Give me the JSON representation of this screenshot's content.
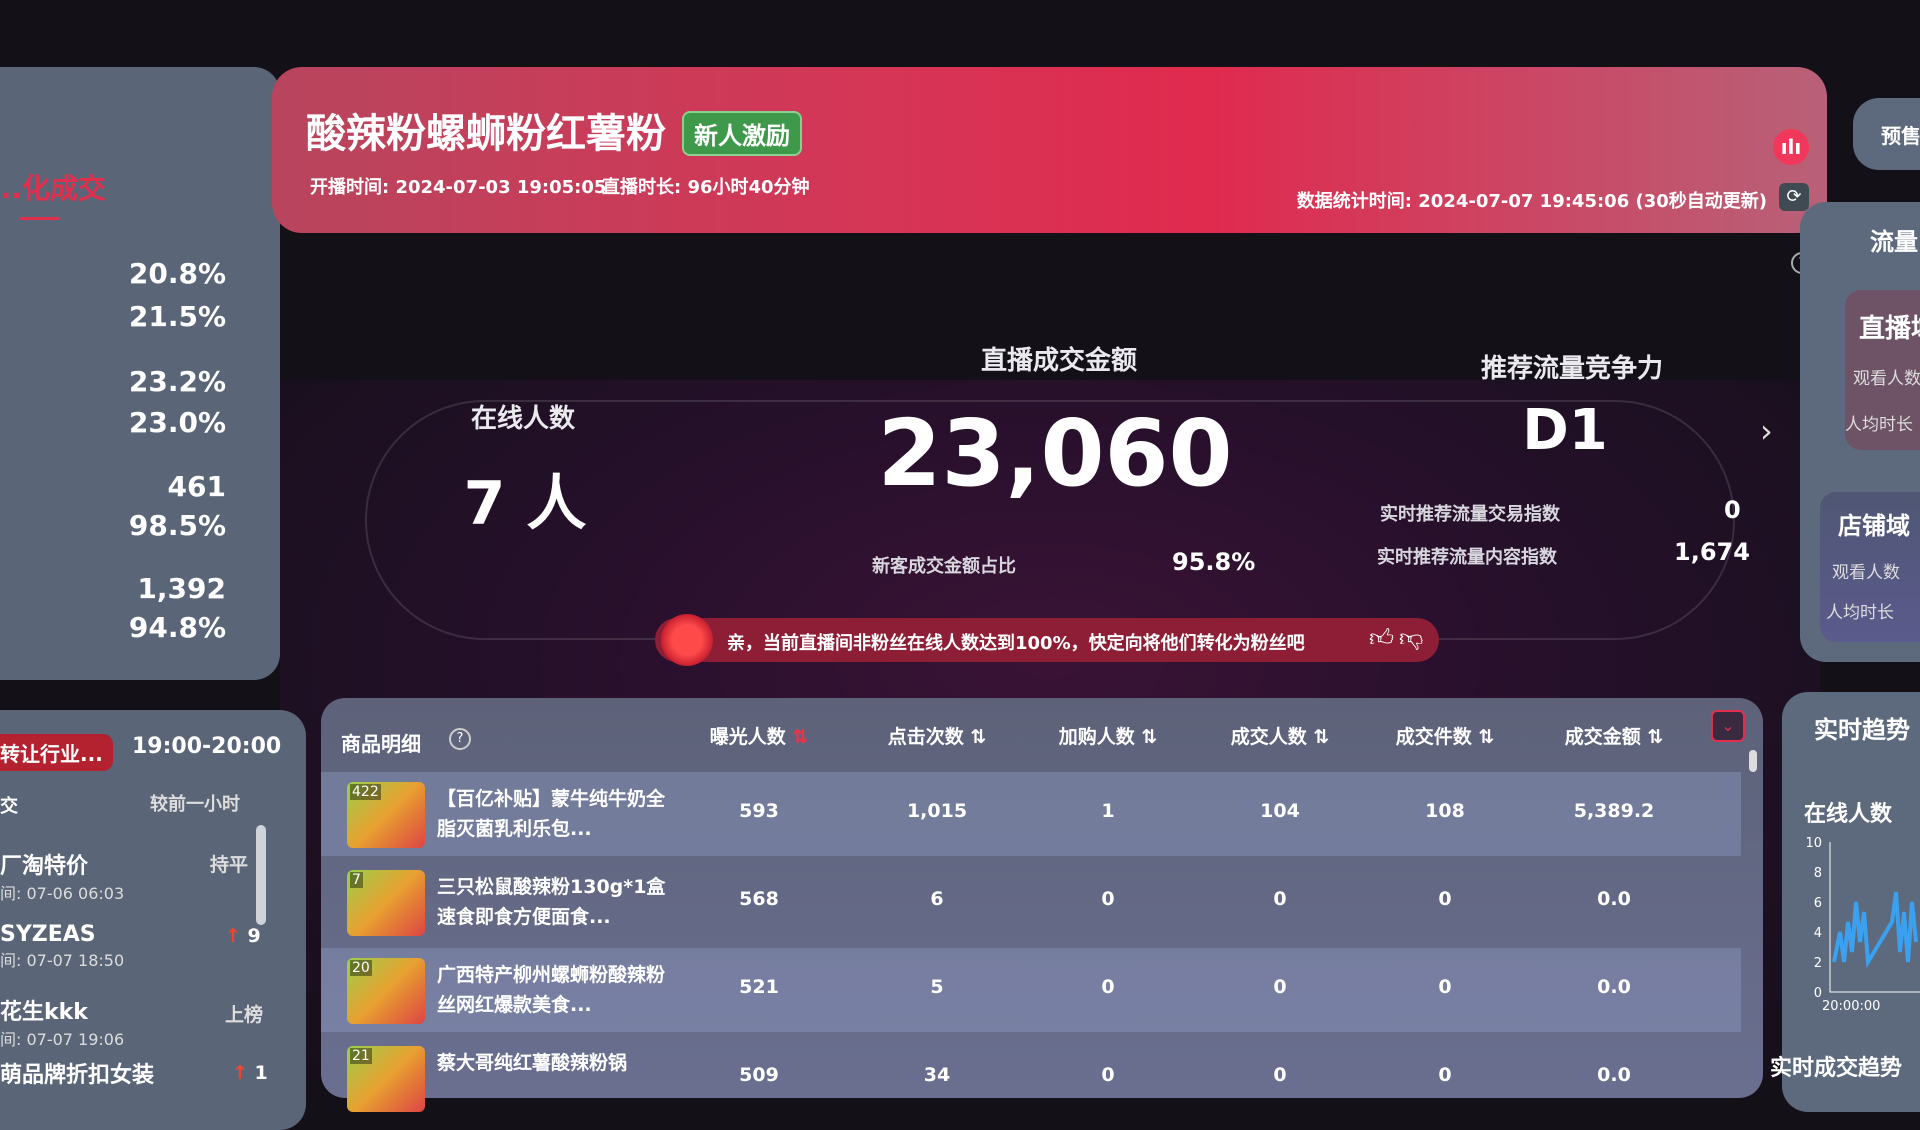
{
  "left_stats": {
    "title": "...化成交",
    "values": [
      "20.8%",
      "21.5%",
      "23.2%",
      "23.0%",
      "461",
      "98.5%",
      "1,392",
      "94.8%"
    ]
  },
  "left_rank": {
    "tag": "转让行业...",
    "time_range": "19:00-20:00",
    "label": "交",
    "compare": "较前一小时",
    "items": [
      {
        "name": "厂淘特价",
        "time": "间: 07-06 06:03",
        "change": "持平"
      },
      {
        "name": "SYZEAS",
        "time": "间: 07-07 18:50",
        "change": "9",
        "up": true
      },
      {
        "name": "花生kkk",
        "time": "间: 07-07 19:06",
        "change": "上榜"
      },
      {
        "name": "萌品牌折扣女装",
        "time": "",
        "change": "1",
        "up": true
      }
    ]
  },
  "header": {
    "title": "酸辣粉螺蛳粉红薯粉",
    "tag": "新人激励",
    "start_time": "开播时间: 2024-07-03 19:05:05",
    "duration": "直播时长: 96小时40分钟",
    "stat_time": "数据统计时间: 2024-07-07 19:45:06 (30秒自动更新)"
  },
  "metrics": {
    "online_label": "在线人数",
    "online_value": "7 人",
    "gmv_label": "直播成交金额",
    "gmv_value": "23,060",
    "new_ratio_label": "新客成交金额占比",
    "new_ratio_value": "95.8%",
    "rec_label": "推荐流量竞争力",
    "rec_value": "D1",
    "trade_index_label": "实时推荐流量交易指数",
    "trade_index_value": "0",
    "content_index_label": "实时推荐流量内容指数",
    "content_index_value": "1,674"
  },
  "notice": {
    "text": "亲，当前直播间非粉丝在线人数达到100%，快定向将他们转化为粉丝吧"
  },
  "table": {
    "title": "商品明细",
    "columns": [
      "曝光人数",
      "点击次数",
      "加购人数",
      "成交人数",
      "成交件数",
      "成交金额"
    ],
    "rows": [
      {
        "index": "422",
        "name": "【百亿补贴】蒙牛纯牛奶全脂灭菌乳利乐包...",
        "values": [
          "593",
          "1,015",
          "1",
          "104",
          "108",
          "5,389.2"
        ]
      },
      {
        "index": "7",
        "name": "三只松鼠酸辣粉130g*1盒速食即食方便面食...",
        "values": [
          "568",
          "6",
          "0",
          "0",
          "0",
          "0.0"
        ]
      },
      {
        "index": "20",
        "name": "广西特产柳州螺蛳粉酸辣粉丝网红爆款美食...",
        "values": [
          "521",
          "5",
          "0",
          "0",
          "0",
          "0.0"
        ]
      },
      {
        "index": "21",
        "name": "蔡大哥纯红薯酸辣粉锅",
        "values": [
          "509",
          "34",
          "0",
          "0",
          "0",
          "0.0"
        ]
      }
    ]
  },
  "right": {
    "presale": "预售",
    "traffic_title": "流量",
    "live_domain": "直播域",
    "shop_domain": "店铺域",
    "viewers": "观看人数",
    "avg_time": "人均时长",
    "trend_title": "实时趋势",
    "online_chart_title": "在线人数",
    "chart_y_ticks": [
      "10",
      "8",
      "6",
      "4",
      "2",
      "0"
    ],
    "chart_x_tick": "20:00:00",
    "deal_trend": "实时成交趋势"
  },
  "colors": {
    "banner": "#e02a4e",
    "tag": "#3e9a4a",
    "accent": "#e0304e"
  }
}
